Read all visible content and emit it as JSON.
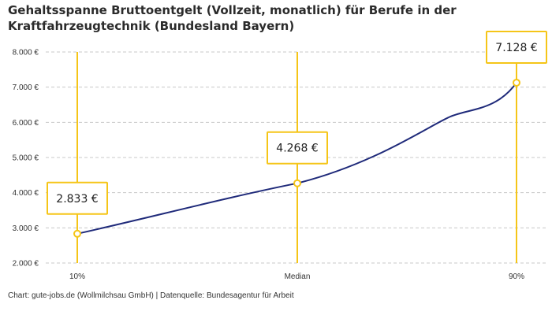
{
  "title_lines": [
    "Gehaltsspanne Bruttoentgelt (Vollzeit, monatlich) für Berufe in der",
    "Kraftfahrzeugtechnik (Bundesland Bayern)"
  ],
  "footer": "Chart: gute-jobs.de (Wollmilchsau GmbH) | Datenquelle: Bundesagentur für Arbeit",
  "colors": {
    "line": "#1f2a7a",
    "accent": "#f5c518",
    "grid": "#c8c8c8",
    "text": "#222222"
  },
  "chart_data": {
    "type": "line",
    "title": "Gehaltsspanne Bruttoentgelt (Vollzeit, monatlich) für Berufe in der Kraftfahrzeugtechnik (Bundesland Bayern)",
    "categories": [
      "10%",
      "Median",
      "90%"
    ],
    "values": [
      2833,
      4268,
      7128
    ],
    "value_labels": [
      "2.833 €",
      "4.268 €",
      "7.128 €"
    ],
    "ylim": [
      2000,
      8000
    ],
    "yticks": [
      2000,
      3000,
      4000,
      5000,
      6000,
      7000,
      8000
    ],
    "ytick_labels": [
      "2.000 €",
      "3.000 €",
      "4.000 €",
      "5.000 €",
      "6.000 €",
      "7.000 €",
      "8.000 €"
    ],
    "xlabel": "",
    "ylabel": "",
    "grid": true,
    "grid_style": "dashed",
    "legend": "none"
  }
}
